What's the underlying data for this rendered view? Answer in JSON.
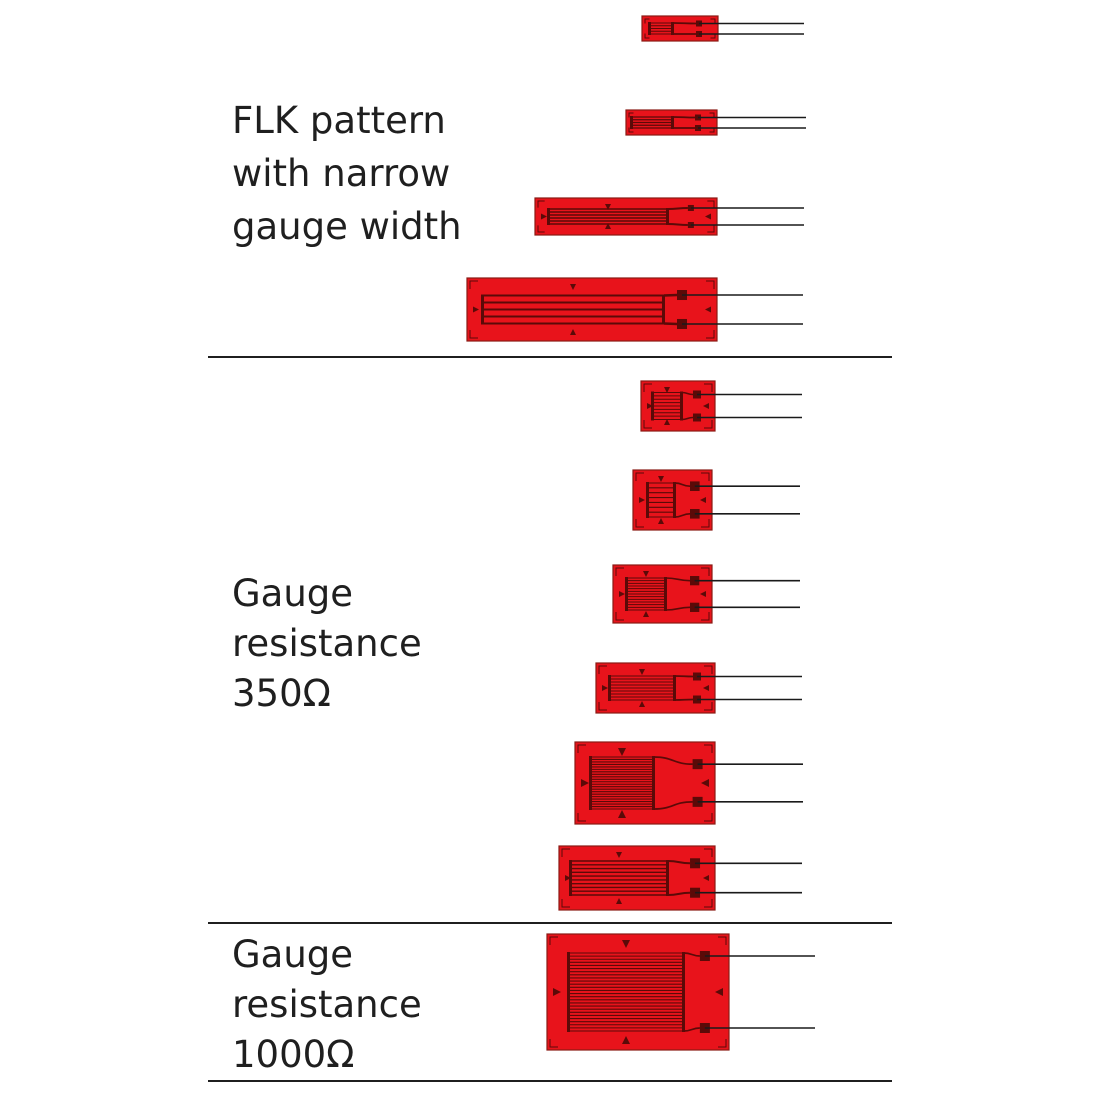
{
  "sections": [
    {
      "id": "flk",
      "label_lines": [
        "FLK pattern",
        "with narrow",
        "gauge width"
      ]
    },
    {
      "id": "r350",
      "label_lines": [
        "Gauge",
        "resistance",
        "350Ω"
      ]
    },
    {
      "id": "r1000",
      "label_lines": [
        "Gauge",
        "resistance",
        "1000Ω"
      ]
    }
  ],
  "colors": {
    "gauge_fill": "#e8131b",
    "gauge_border": "#8a1a14",
    "grid_line": "#5b0a08",
    "lead_wire": "#1a1a1a",
    "text": "#1f1f1f",
    "divider": "#1f1f1f"
  }
}
